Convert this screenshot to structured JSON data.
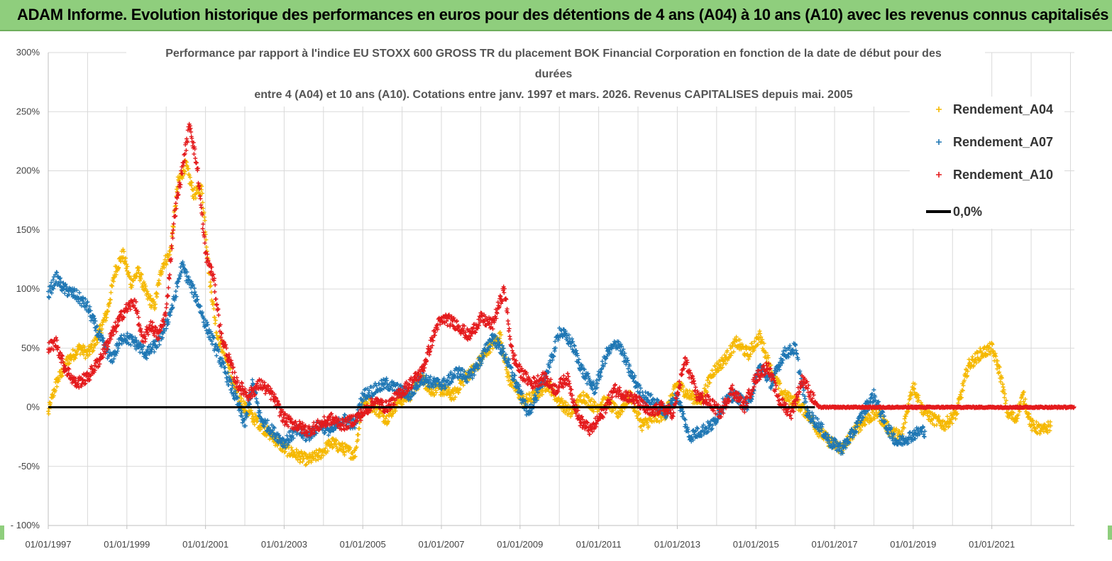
{
  "header": {
    "title": "ADAM Informe. Evolution historique des performances en euros pour des détentions de 4 ans (A04) à 10 ans (A10) avec les revenus connus capitalisés"
  },
  "colors": {
    "A04": "#f5b800",
    "A07": "#1f77b4",
    "A10": "#e41a1c",
    "zero": "#000000",
    "grid": "#d9d9d9",
    "header_bg": "#8fce7d"
  },
  "chart_data": {
    "type": "scatter",
    "title_lines": [
      "Performance par rapport à l'indice EU STOXX 600 GROSS TR  du placement BOK Financial Corporation en fonction de la date de début pour des",
      "durées",
      "entre 4 (A04) et 10 ans (A10). Cotations entre janv. 1997 et mars. 2026. Revenus CAPITALISES depuis mai. 2005"
    ],
    "x_tick_labels": [
      "01/01/1997",
      "01/01/1999",
      "01/01/2001",
      "01/01/2003",
      "01/01/2005",
      "01/01/2007",
      "01/01/2009",
      "01/01/2011",
      "01/01/2013",
      "01/01/2015",
      "01/01/2017",
      "01/01/2019",
      "01/01/2021"
    ],
    "x_tick_years": [
      1997,
      1999,
      2001,
      2003,
      2005,
      2007,
      2009,
      2011,
      2013,
      2015,
      2017,
      2019,
      2021
    ],
    "xlim": [
      1997.0,
      2023.1
    ],
    "y_tick_labels": [
      "- 100%",
      "-50%",
      "0%",
      "50%",
      "100%",
      "150%",
      "200%",
      "250%",
      "300%"
    ],
    "y_tick_values": [
      -100,
      -50,
      0,
      50,
      100,
      150,
      200,
      250,
      300
    ],
    "ylim": [
      -100,
      300
    ],
    "zero_line": {
      "name": "0,0%",
      "value": 0
    },
    "legend_position": "top-right",
    "series": [
      {
        "name": "Rendement_A04",
        "key": "A04",
        "x_range": [
          1997.0,
          2022.5
        ],
        "points": [
          [
            1997.0,
            -5
          ],
          [
            1997.2,
            20
          ],
          [
            1997.5,
            40
          ],
          [
            1997.8,
            50
          ],
          [
            1998.0,
            45
          ],
          [
            1998.2,
            55
          ],
          [
            1998.5,
            80
          ],
          [
            1998.7,
            115
          ],
          [
            1998.9,
            130
          ],
          [
            1999.1,
            105
          ],
          [
            1999.3,
            115
          ],
          [
            1999.5,
            95
          ],
          [
            1999.7,
            85
          ],
          [
            1999.9,
            120
          ],
          [
            2000.1,
            130
          ],
          [
            2000.3,
            190
          ],
          [
            2000.5,
            205
          ],
          [
            2000.7,
            180
          ],
          [
            2000.9,
            185
          ],
          [
            2001.0,
            150
          ],
          [
            2001.1,
            110
          ],
          [
            2001.3,
            60
          ],
          [
            2001.5,
            45
          ],
          [
            2001.7,
            20
          ],
          [
            2001.9,
            5
          ],
          [
            2002.1,
            -5
          ],
          [
            2002.4,
            -15
          ],
          [
            2002.7,
            -25
          ],
          [
            2003.0,
            -35
          ],
          [
            2003.3,
            -40
          ],
          [
            2003.6,
            -45
          ],
          [
            2003.9,
            -40
          ],
          [
            2004.2,
            -30
          ],
          [
            2004.5,
            -35
          ],
          [
            2004.8,
            -40
          ],
          [
            2005.0,
            5
          ],
          [
            2005.3,
            0
          ],
          [
            2005.6,
            -10
          ],
          [
            2005.9,
            5
          ],
          [
            2006.2,
            10
          ],
          [
            2006.5,
            25
          ],
          [
            2006.7,
            15
          ],
          [
            2007.0,
            15
          ],
          [
            2007.3,
            10
          ],
          [
            2007.6,
            25
          ],
          [
            2007.9,
            35
          ],
          [
            2008.2,
            50
          ],
          [
            2008.5,
            60
          ],
          [
            2008.7,
            25
          ],
          [
            2008.9,
            15
          ],
          [
            2009.1,
            5
          ],
          [
            2009.4,
            10
          ],
          [
            2009.7,
            20
          ],
          [
            2010.0,
            5
          ],
          [
            2010.3,
            -5
          ],
          [
            2010.6,
            10
          ],
          [
            2010.9,
            0
          ],
          [
            2011.2,
            5
          ],
          [
            2011.5,
            -5
          ],
          [
            2011.8,
            10
          ],
          [
            2012.1,
            -15
          ],
          [
            2012.4,
            -10
          ],
          [
            2012.7,
            -5
          ],
          [
            2013.0,
            20
          ],
          [
            2013.3,
            10
          ],
          [
            2013.6,
            5
          ],
          [
            2013.9,
            30
          ],
          [
            2014.2,
            40
          ],
          [
            2014.5,
            55
          ],
          [
            2014.8,
            45
          ],
          [
            2015.1,
            60
          ],
          [
            2015.4,
            30
          ],
          [
            2015.7,
            10
          ],
          [
            2016.0,
            5
          ],
          [
            2016.3,
            -5
          ],
          [
            2016.6,
            -20
          ],
          [
            2016.9,
            -30
          ],
          [
            2017.2,
            -35
          ],
          [
            2017.5,
            -20
          ],
          [
            2017.8,
            -10
          ],
          [
            2018.1,
            -5
          ],
          [
            2018.4,
            -20
          ],
          [
            2018.7,
            -25
          ],
          [
            2019.0,
            20
          ],
          [
            2019.2,
            0
          ],
          [
            2019.5,
            -10
          ],
          [
            2019.8,
            -15
          ],
          [
            2020.1,
            -5
          ],
          [
            2020.4,
            35
          ],
          [
            2020.7,
            45
          ],
          [
            2021.0,
            50
          ],
          [
            2021.2,
            30
          ],
          [
            2021.4,
            -5
          ],
          [
            2021.6,
            -10
          ],
          [
            2021.8,
            10
          ],
          [
            2022.0,
            -15
          ],
          [
            2022.3,
            -20
          ],
          [
            2022.5,
            -15
          ]
        ]
      },
      {
        "name": "Rendement_A07",
        "key": "A07",
        "x_range": [
          1997.0,
          2019.3
        ],
        "points": [
          [
            1997.0,
            95
          ],
          [
            1997.2,
            110
          ],
          [
            1997.4,
            100
          ],
          [
            1997.7,
            95
          ],
          [
            1998.0,
            85
          ],
          [
            1998.3,
            60
          ],
          [
            1998.6,
            40
          ],
          [
            1998.9,
            60
          ],
          [
            1999.2,
            55
          ],
          [
            1999.5,
            45
          ],
          [
            1999.8,
            55
          ],
          [
            2000.0,
            70
          ],
          [
            2000.2,
            90
          ],
          [
            2000.4,
            120
          ],
          [
            2000.6,
            105
          ],
          [
            2000.8,
            90
          ],
          [
            2001.0,
            70
          ],
          [
            2001.2,
            55
          ],
          [
            2001.5,
            30
          ],
          [
            2001.8,
            5
          ],
          [
            2002.0,
            -15
          ],
          [
            2002.2,
            20
          ],
          [
            2002.4,
            -10
          ],
          [
            2002.7,
            -20
          ],
          [
            2003.0,
            -30
          ],
          [
            2003.3,
            -20
          ],
          [
            2003.6,
            -25
          ],
          [
            2003.9,
            -15
          ],
          [
            2004.2,
            -20
          ],
          [
            2004.5,
            -10
          ],
          [
            2004.8,
            -15
          ],
          [
            2005.0,
            10
          ],
          [
            2005.3,
            15
          ],
          [
            2005.6,
            20
          ],
          [
            2005.9,
            15
          ],
          [
            2006.2,
            10
          ],
          [
            2006.5,
            25
          ],
          [
            2006.8,
            20
          ],
          [
            2007.1,
            20
          ],
          [
            2007.4,
            30
          ],
          [
            2007.7,
            25
          ],
          [
            2008.0,
            40
          ],
          [
            2008.3,
            60
          ],
          [
            2008.6,
            45
          ],
          [
            2008.9,
            20
          ],
          [
            2009.2,
            -5
          ],
          [
            2009.5,
            15
          ],
          [
            2009.8,
            40
          ],
          [
            2010.0,
            65
          ],
          [
            2010.3,
            55
          ],
          [
            2010.6,
            30
          ],
          [
            2010.9,
            15
          ],
          [
            2011.2,
            45
          ],
          [
            2011.5,
            55
          ],
          [
            2011.8,
            30
          ],
          [
            2012.1,
            10
          ],
          [
            2012.4,
            5
          ],
          [
            2012.7,
            -5
          ],
          [
            2013.0,
            10
          ],
          [
            2013.3,
            -25
          ],
          [
            2013.6,
            -20
          ],
          [
            2013.9,
            -15
          ],
          [
            2014.2,
            5
          ],
          [
            2014.5,
            10
          ],
          [
            2014.8,
            0
          ],
          [
            2015.1,
            35
          ],
          [
            2015.4,
            20
          ],
          [
            2015.7,
            45
          ],
          [
            2016.0,
            50
          ],
          [
            2016.3,
            -5
          ],
          [
            2016.6,
            -15
          ],
          [
            2016.9,
            -30
          ],
          [
            2017.2,
            -35
          ],
          [
            2017.5,
            -20
          ],
          [
            2017.8,
            0
          ],
          [
            2018.0,
            10
          ],
          [
            2018.3,
            -15
          ],
          [
            2018.6,
            -30
          ],
          [
            2018.9,
            -25
          ],
          [
            2019.2,
            -20
          ]
        ]
      },
      {
        "name": "Rendement_A10",
        "key": "A10",
        "x_range": [
          1997.0,
          2023.1
        ],
        "points": [
          [
            1997.0,
            50
          ],
          [
            1997.2,
            55
          ],
          [
            1997.4,
            35
          ],
          [
            1997.7,
            20
          ],
          [
            1998.0,
            25
          ],
          [
            1998.3,
            40
          ],
          [
            1998.6,
            60
          ],
          [
            1998.9,
            80
          ],
          [
            1999.2,
            90
          ],
          [
            1999.4,
            55
          ],
          [
            1999.6,
            70
          ],
          [
            1999.8,
            60
          ],
          [
            2000.0,
            80
          ],
          [
            2000.2,
            160
          ],
          [
            2000.4,
            200
          ],
          [
            2000.6,
            240
          ],
          [
            2000.8,
            200
          ],
          [
            2001.0,
            130
          ],
          [
            2001.2,
            110
          ],
          [
            2001.4,
            60
          ],
          [
            2001.6,
            40
          ],
          [
            2001.8,
            20
          ],
          [
            2002.1,
            10
          ],
          [
            2002.4,
            20
          ],
          [
            2002.7,
            10
          ],
          [
            2003.0,
            -10
          ],
          [
            2003.3,
            -15
          ],
          [
            2003.6,
            -20
          ],
          [
            2003.9,
            -15
          ],
          [
            2004.2,
            -10
          ],
          [
            2004.5,
            -15
          ],
          [
            2004.8,
            -10
          ],
          [
            2005.0,
            -5
          ],
          [
            2005.3,
            5
          ],
          [
            2005.6,
            0
          ],
          [
            2005.9,
            10
          ],
          [
            2006.2,
            20
          ],
          [
            2006.5,
            30
          ],
          [
            2006.7,
            50
          ],
          [
            2006.9,
            70
          ],
          [
            2007.1,
            75
          ],
          [
            2007.4,
            70
          ],
          [
            2007.7,
            60
          ],
          [
            2008.0,
            75
          ],
          [
            2008.3,
            70
          ],
          [
            2008.6,
            100
          ],
          [
            2008.8,
            45
          ],
          [
            2009.0,
            30
          ],
          [
            2009.3,
            20
          ],
          [
            2009.6,
            25
          ],
          [
            2009.9,
            15
          ],
          [
            2010.2,
            25
          ],
          [
            2010.5,
            -10
          ],
          [
            2010.8,
            -20
          ],
          [
            2011.1,
            -5
          ],
          [
            2011.4,
            15
          ],
          [
            2011.7,
            10
          ],
          [
            2012.0,
            5
          ],
          [
            2012.3,
            -5
          ],
          [
            2012.6,
            0
          ],
          [
            2012.9,
            -5
          ],
          [
            2013.2,
            40
          ],
          [
            2013.5,
            10
          ],
          [
            2013.8,
            5
          ],
          [
            2014.1,
            -5
          ],
          [
            2014.4,
            15
          ],
          [
            2014.7,
            0
          ],
          [
            2015.0,
            25
          ],
          [
            2015.3,
            35
          ],
          [
            2015.6,
            5
          ],
          [
            2015.9,
            -5
          ],
          [
            2016.2,
            25
          ],
          [
            2016.4,
            10
          ],
          [
            2016.6,
            0
          ],
          [
            2017.0,
            0
          ],
          [
            2017.5,
            0
          ],
          [
            2018.0,
            0
          ],
          [
            2018.5,
            0
          ],
          [
            2019.0,
            0
          ],
          [
            2019.5,
            0
          ],
          [
            2020.0,
            0
          ],
          [
            2020.5,
            0
          ],
          [
            2021.0,
            0
          ],
          [
            2021.5,
            0
          ],
          [
            2022.0,
            0
          ],
          [
            2022.5,
            0
          ],
          [
            2023.0,
            0
          ]
        ]
      }
    ]
  }
}
